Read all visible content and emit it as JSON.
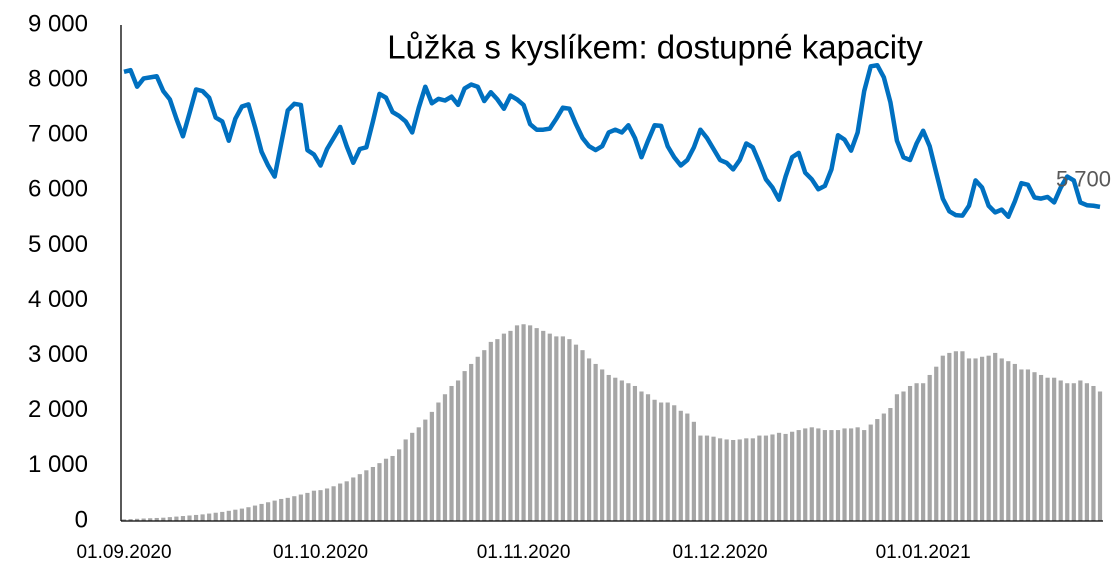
{
  "chart_data": {
    "type": "combo",
    "title": "Lůžka s kyslíkem: dostupné kapacity",
    "categories": [
      "01.09.2020",
      null,
      null,
      null,
      null,
      null,
      null,
      null,
      null,
      null,
      null,
      null,
      null,
      null,
      null,
      null,
      null,
      null,
      null,
      null,
      null,
      null,
      null,
      null,
      null,
      null,
      null,
      null,
      null,
      null,
      "01.10.2020",
      null,
      null,
      null,
      null,
      null,
      null,
      null,
      null,
      null,
      null,
      null,
      null,
      null,
      null,
      null,
      null,
      null,
      null,
      null,
      null,
      null,
      null,
      null,
      null,
      null,
      null,
      null,
      null,
      null,
      null,
      "01.11.2020",
      null,
      null,
      null,
      null,
      null,
      null,
      null,
      null,
      null,
      null,
      null,
      null,
      null,
      null,
      null,
      null,
      null,
      null,
      null,
      null,
      null,
      null,
      null,
      null,
      null,
      null,
      null,
      null,
      null,
      "01.12.2020",
      null,
      null,
      null,
      null,
      null,
      null,
      null,
      null,
      null,
      null,
      null,
      null,
      null,
      null,
      null,
      null,
      null,
      null,
      null,
      null,
      null,
      null,
      null,
      null,
      null,
      null,
      null,
      null,
      null,
      null,
      "01.01.2021",
      null,
      null,
      null,
      null,
      null,
      null,
      null,
      null,
      null,
      null,
      null,
      null,
      null,
      null,
      null,
      null,
      null,
      null,
      null,
      null,
      null,
      null,
      null,
      null,
      null,
      null,
      null
    ],
    "series": [
      {
        "type": "bar",
        "color": "#a6a6a6",
        "values": [
          30,
          35,
          40,
          45,
          50,
          55,
          60,
          70,
          80,
          90,
          100,
          110,
          120,
          135,
          150,
          165,
          185,
          205,
          225,
          250,
          280,
          310,
          340,
          370,
          400,
          420,
          450,
          480,
          510,
          550,
          560,
          590,
          630,
          680,
          720,
          790,
          850,
          920,
          980,
          1050,
          1130,
          1180,
          1300,
          1480,
          1600,
          1700,
          1840,
          1980,
          2150,
          2300,
          2450,
          2550,
          2720,
          2850,
          2980,
          3100,
          3250,
          3300,
          3400,
          3450,
          3550,
          3570,
          3550,
          3500,
          3450,
          3400,
          3350,
          3350,
          3300,
          3200,
          3100,
          2950,
          2850,
          2750,
          2650,
          2600,
          2550,
          2500,
          2450,
          2350,
          2300,
          2200,
          2150,
          2150,
          2100,
          2000,
          1950,
          1800,
          1550,
          1550,
          1530,
          1500,
          1480,
          1470,
          1480,
          1500,
          1500,
          1550,
          1550,
          1570,
          1600,
          1580,
          1620,
          1650,
          1680,
          1700,
          1680,
          1650,
          1650,
          1650,
          1680,
          1680,
          1700,
          1650,
          1750,
          1850,
          1950,
          2050,
          2300,
          2350,
          2450,
          2500,
          2500,
          2650,
          2800,
          3000,
          3050,
          3080,
          3080,
          2950,
          2950,
          2980,
          3000,
          3050,
          2950,
          2900,
          2850,
          2750,
          2750,
          2700,
          2650,
          2600,
          2600,
          2550,
          2500,
          2500,
          2550,
          2500,
          2450,
          2350
        ]
      },
      {
        "type": "line",
        "color": "#0070c0",
        "values": [
          8150,
          8180,
          7880,
          8030,
          8050,
          8070,
          7800,
          7650,
          7300,
          6980,
          7400,
          7830,
          7800,
          7680,
          7320,
          7250,
          6900,
          7300,
          7520,
          7560,
          7150,
          6700,
          6450,
          6250,
          6850,
          7450,
          7570,
          7550,
          6730,
          6650,
          6450,
          6750,
          6950,
          7150,
          6800,
          6500,
          6750,
          6780,
          7250,
          7750,
          7680,
          7420,
          7350,
          7250,
          7050,
          7500,
          7880,
          7580,
          7660,
          7630,
          7700,
          7550,
          7850,
          7920,
          7880,
          7620,
          7780,
          7650,
          7480,
          7720,
          7650,
          7550,
          7200,
          7100,
          7100,
          7120,
          7300,
          7500,
          7480,
          7200,
          6950,
          6800,
          6730,
          6800,
          7050,
          7100,
          7050,
          7180,
          6950,
          6600,
          6900,
          7180,
          7170,
          6800,
          6600,
          6450,
          6550,
          6780,
          7100,
          6950,
          6750,
          6550,
          6500,
          6380,
          6550,
          6850,
          6780,
          6500,
          6200,
          6050,
          5830,
          6250,
          6600,
          6680,
          6320,
          6200,
          6020,
          6080,
          6380,
          7000,
          6920,
          6720,
          7050,
          7800,
          8250,
          8270,
          8050,
          7600,
          6900,
          6600,
          6550,
          6850,
          7080,
          6800,
          6320,
          5850,
          5620,
          5550,
          5540,
          5720,
          6180,
          6050,
          5720,
          5600,
          5650,
          5520,
          5800,
          6130,
          6100,
          5870,
          5850,
          5880,
          5780,
          6050,
          6250,
          6180,
          5780,
          5730,
          5720,
          5700
        ],
        "value_labels": [
          null,
          null,
          null,
          null,
          null,
          null,
          null,
          null,
          null,
          null,
          null,
          null,
          null,
          null,
          null,
          null,
          null,
          null,
          null,
          null,
          null,
          null,
          null,
          null,
          null,
          null,
          null,
          null,
          null,
          null,
          null,
          null,
          null,
          null,
          null,
          null,
          null,
          null,
          null,
          null,
          null,
          null,
          null,
          null,
          null,
          null,
          null,
          null,
          null,
          null,
          null,
          null,
          null,
          null,
          null,
          null,
          null,
          null,
          null,
          null,
          null,
          null,
          null,
          null,
          null,
          null,
          null,
          null,
          null,
          null,
          null,
          null,
          null,
          null,
          null,
          null,
          null,
          null,
          null,
          null,
          null,
          null,
          null,
          null,
          null,
          null,
          null,
          null,
          null,
          null,
          null,
          null,
          null,
          null,
          null,
          null,
          null,
          null,
          null,
          null,
          null,
          null,
          null,
          null,
          null,
          null,
          null,
          null,
          null,
          null,
          null,
          null,
          null,
          null,
          null,
          null,
          null,
          null,
          null,
          null,
          null,
          null,
          null,
          null,
          null,
          null,
          null,
          null,
          null,
          null,
          null,
          null,
          null,
          null,
          null,
          null,
          null,
          null,
          null,
          null,
          null,
          null,
          null,
          null,
          null,
          null,
          null,
          null,
          null,
          "5 700"
        ]
      }
    ],
    "ylim": [
      0,
      9000
    ],
    "yticks": [
      0,
      {
        "value": 1000,
        "label": "1 000"
      },
      {
        "value": 2000,
        "label": "2 000"
      },
      {
        "value": 3000,
        "label": "3 000"
      },
      {
        "value": 4000,
        "label": "4 000"
      },
      {
        "value": 5000,
        "label": "5 000"
      },
      {
        "value": 6000,
        "label": "6 000"
      },
      {
        "value": 7000,
        "label": "7 000"
      },
      {
        "value": 8000,
        "label": "8 000"
      },
      {
        "value": 9000,
        "label": "9 000"
      }
    ],
    "grid": false
  }
}
